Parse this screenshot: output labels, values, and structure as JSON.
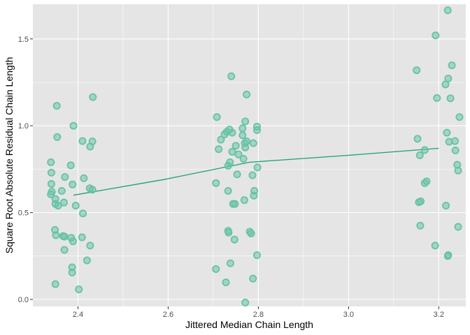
{
  "chart_data": {
    "type": "scatter",
    "title": "",
    "xlabel": "Jittered Median Chain Length",
    "ylabel": "Square Root Absolute Residual Chain Length",
    "xlim": [
      2.3,
      3.26
    ],
    "ylim": [
      -0.04,
      1.7
    ],
    "xticks": [
      2.4,
      2.6,
      2.8,
      3.0,
      3.2
    ],
    "xtick_labels": [
      "2.4",
      "2.6",
      "2.8",
      "3.0",
      "3.2"
    ],
    "yticks": [
      0.0,
      0.5,
      1.0,
      1.5
    ],
    "ytick_labels": [
      "0.0",
      "0.5",
      "1.0",
      "1.5"
    ],
    "grid": true,
    "panel_background": "#E5E5E5",
    "grid_color": "#FFFFFF",
    "point_color": "#66C2A5",
    "point_fill_opacity": 0.5,
    "trend_color": "#1B9E77",
    "points": [
      [
        2.353,
        1.115
      ],
      [
        2.433,
        1.165
      ],
      [
        2.39,
        1.0
      ],
      [
        2.354,
        0.935
      ],
      [
        2.41,
        0.912
      ],
      [
        2.432,
        0.91
      ],
      [
        2.427,
        0.88
      ],
      [
        2.34,
        0.79
      ],
      [
        2.384,
        0.772
      ],
      [
        2.341,
        0.73
      ],
      [
        2.371,
        0.705
      ],
      [
        2.413,
        0.698
      ],
      [
        2.341,
        0.665
      ],
      [
        2.388,
        0.662
      ],
      [
        2.426,
        0.64
      ],
      [
        2.432,
        0.632
      ],
      [
        2.364,
        0.625
      ],
      [
        2.342,
        0.62
      ],
      [
        2.34,
        0.605
      ],
      [
        2.35,
        0.578
      ],
      [
        2.369,
        0.558
      ],
      [
        2.35,
        0.55
      ],
      [
        2.356,
        0.54
      ],
      [
        2.395,
        0.54
      ],
      [
        2.411,
        0.495
      ],
      [
        2.349,
        0.4
      ],
      [
        2.351,
        0.37
      ],
      [
        2.367,
        0.365
      ],
      [
        2.37,
        0.362
      ],
      [
        2.385,
        0.355
      ],
      [
        2.409,
        0.358
      ],
      [
        2.389,
        0.335
      ],
      [
        2.427,
        0.31
      ],
      [
        2.37,
        0.285
      ],
      [
        2.42,
        0.225
      ],
      [
        2.387,
        0.185
      ],
      [
        2.387,
        0.155
      ],
      [
        2.402,
        0.058
      ],
      [
        2.35,
        0.088
      ],
      [
        2.74,
        1.285
      ],
      [
        2.774,
        1.18
      ],
      [
        2.708,
        1.05
      ],
      [
        2.771,
        1.025
      ],
      [
        2.797,
        0.995
      ],
      [
        2.765,
        0.985
      ],
      [
        2.736,
        0.978
      ],
      [
        2.797,
        0.975
      ],
      [
        2.73,
        0.965
      ],
      [
        2.742,
        0.96
      ],
      [
        2.725,
        0.95
      ],
      [
        2.765,
        0.945
      ],
      [
        2.717,
        0.92
      ],
      [
        2.774,
        0.91
      ],
      [
        2.77,
        0.9
      ],
      [
        2.789,
        0.9
      ],
      [
        2.75,
        0.885
      ],
      [
        2.771,
        0.875
      ],
      [
        2.712,
        0.865
      ],
      [
        2.742,
        0.85
      ],
      [
        2.756,
        0.835
      ],
      [
        2.767,
        0.81
      ],
      [
        2.737,
        0.79
      ],
      [
        2.733,
        0.77
      ],
      [
        2.798,
        0.76
      ],
      [
        2.787,
        0.715
      ],
      [
        2.753,
        0.72
      ],
      [
        2.706,
        0.67
      ],
      [
        2.791,
        0.625
      ],
      [
        2.733,
        0.625
      ],
      [
        2.79,
        0.598
      ],
      [
        2.769,
        0.572
      ],
      [
        2.748,
        0.55
      ],
      [
        2.744,
        0.55
      ],
      [
        2.733,
        0.395
      ],
      [
        2.734,
        0.385
      ],
      [
        2.781,
        0.39
      ],
      [
        2.784,
        0.38
      ],
      [
        2.747,
        0.345
      ],
      [
        2.797,
        0.255
      ],
      [
        2.738,
        0.208
      ],
      [
        2.706,
        0.175
      ],
      [
        2.788,
        0.12
      ],
      [
        2.728,
        0.098
      ],
      [
        2.771,
        -0.018
      ],
      [
        3.22,
        1.665
      ],
      [
        3.193,
        1.52
      ],
      [
        3.229,
        1.348
      ],
      [
        3.151,
        1.32
      ],
      [
        3.221,
        1.272
      ],
      [
        3.215,
        1.238
      ],
      [
        3.226,
        1.158
      ],
      [
        3.196,
        1.16
      ],
      [
        3.246,
        1.05
      ],
      [
        3.218,
        0.96
      ],
      [
        3.153,
        0.925
      ],
      [
        3.236,
        0.912
      ],
      [
        3.223,
        0.908
      ],
      [
        3.237,
        0.858
      ],
      [
        3.169,
        0.86
      ],
      [
        3.158,
        0.83
      ],
      [
        3.241,
        0.775
      ],
      [
        3.243,
        0.742
      ],
      [
        3.173,
        0.68
      ],
      [
        3.169,
        0.67
      ],
      [
        3.16,
        0.565
      ],
      [
        3.156,
        0.56
      ],
      [
        3.216,
        0.54
      ],
      [
        3.159,
        0.425
      ],
      [
        3.243,
        0.418
      ],
      [
        3.192,
        0.31
      ],
      [
        3.221,
        0.255
      ],
      [
        3.22,
        0.25
      ]
    ],
    "trend_line": [
      [
        2.39,
        0.6
      ],
      [
        2.59,
        0.69
      ],
      [
        2.78,
        0.79
      ],
      [
        3.0,
        0.83
      ],
      [
        3.2,
        0.87
      ]
    ]
  }
}
